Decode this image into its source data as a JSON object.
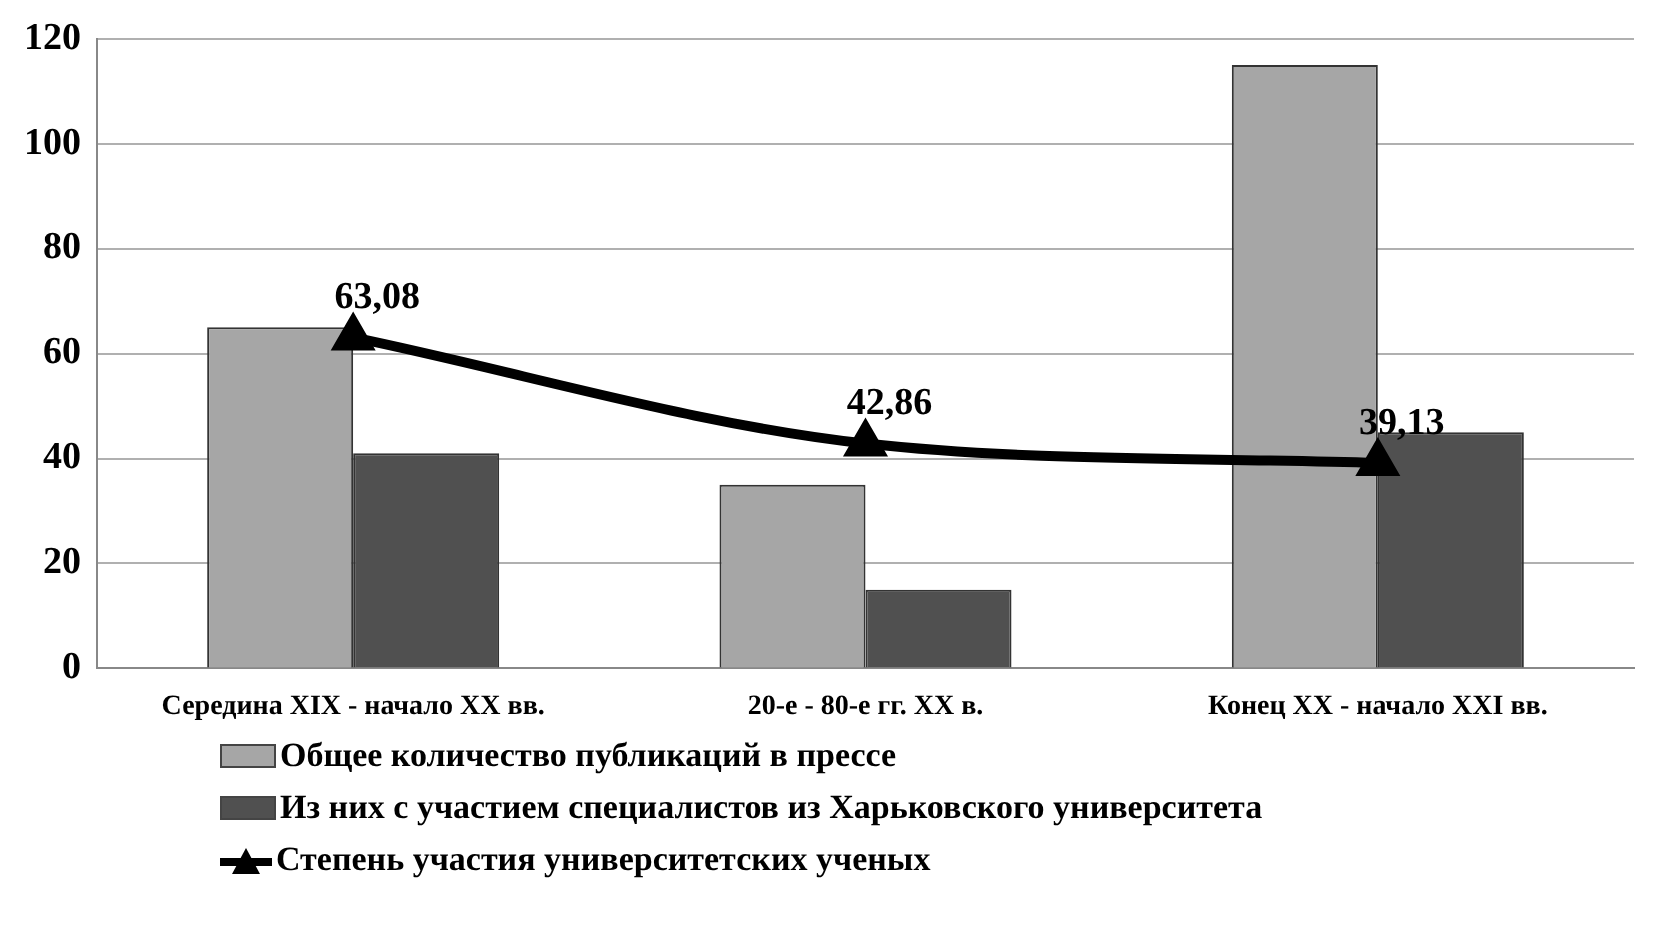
{
  "chart_data": {
    "type": "bar",
    "categories": [
      "Середина XIX - начало XX вв.",
      "20-е - 80-е гг. XX в.",
      "Конец XX - начало XXI вв."
    ],
    "series": [
      {
        "name": "Общее количество публикаций в прессе",
        "color": "#a6a6a6",
        "values": [
          65,
          35,
          115
        ]
      },
      {
        "name": "Из них с участием специалистов из Харьковского университета",
        "color": "#505050",
        "values": [
          41,
          15,
          45
        ]
      },
      {
        "name": "Степень участия университетских ученых",
        "type": "line",
        "color": "#000000",
        "values": [
          63.08,
          42.86,
          39.13
        ],
        "value_labels": [
          "63,08",
          "42,86",
          "39,13"
        ],
        "marker": "triangle"
      }
    ],
    "ylim": [
      0,
      120
    ],
    "yticks": [
      0,
      20,
      40,
      60,
      80,
      100,
      120
    ],
    "grid": "y",
    "legend": "bottom"
  }
}
